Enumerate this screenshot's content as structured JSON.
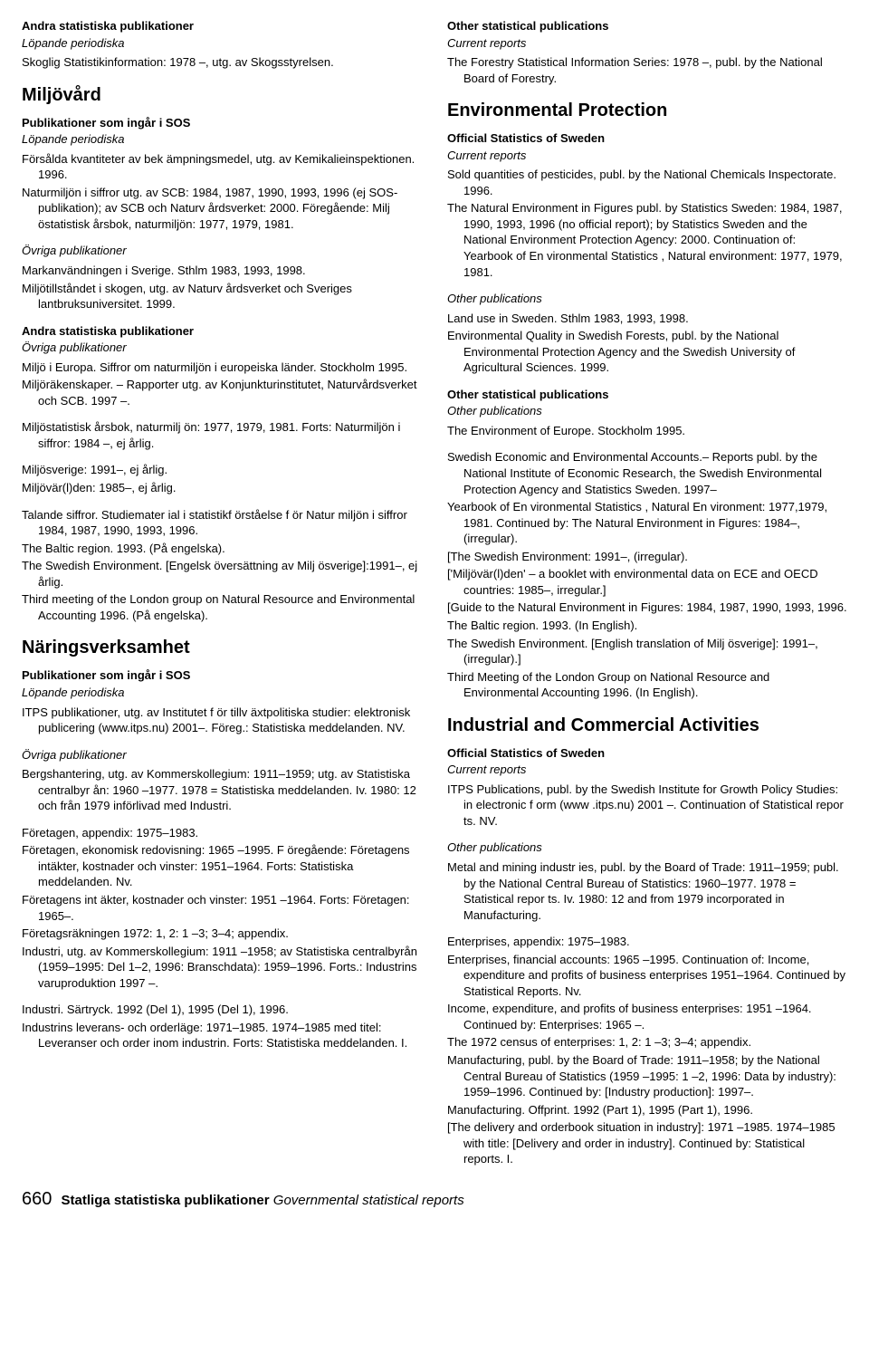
{
  "left": {
    "s1_title": "Andra statistiska publikationer",
    "s1_sub": "Löpande periodiska",
    "s1_p1": "Skoglig Statistikinformation: 1978 –, utg. av Skogsstyrelsen.",
    "sec1": "Miljövård",
    "sec1_h1": "Publikationer som ingår i SOS",
    "sec1_h1_sub": "Löpande periodiska",
    "sec1_p1": "Försålda kvantiteter av bek ämpningsmedel, utg. av Kemikalieinspektionen. 1996.",
    "sec1_p2": "Naturmiljön i siffror utg. av SCB: 1984, 1987, 1990, 1993, 1996 (ej SOS-publikation); av SCB och Naturv årdsverket: 2000. Föregående: Milj östatistisk årsbok, naturmiljön: 1977, 1979, 1981.",
    "sec1_h2": "Övriga publikationer",
    "sec1_p3": "Markanvändningen i Sverige. Sthlm 1983, 1993, 1998.",
    "sec1_p4": "Miljötillståndet i skogen, utg. av Naturv årdsverket och Sveriges lantbruksuniversitet. 1999.",
    "s2_title": "Andra statistiska publikationer",
    "s2_sub": "Övriga publikationer",
    "s2_p1": "Miljö i Europa. Siffror om naturmiljön i europeiska länder. Stockholm 1995.",
    "s2_p2": "Miljöräkenskaper. – Rapporter utg. av Konjunkturinstitutet, Naturvårdsverket och SCB. 1997 –.",
    "s2_p3": "Miljöstatistisk årsbok, naturmilj ön: 1977, 1979, 1981. Forts: Naturmiljön i siffror: 1984 –, ej årlig.",
    "s2_p4": "Miljösverige: 1991–, ej årlig.",
    "s2_p5": "Miljövär(l)den: 1985–, ej årlig.",
    "s2_p6": "Talande siffror. Studiemater ial i statistikf örståelse f ör Natur miljön i siffror 1984, 1987, 1990, 1993, 1996.",
    "s2_p7": "The Baltic region. 1993. (På engelska).",
    "s2_p8": "The Swedish Environment. [Engelsk  översättning av Milj ösverige]:1991–, ej årlig.",
    "s2_p9": "Third meeting of the London group on Natural Resource and Environmental Accounting 1996. (På engelska).",
    "sec2": "Näringsverksamhet",
    "sec2_h1": "Publikationer som ingår i SOS",
    "sec2_h1_sub": "Löpande periodiska",
    "sec2_p1": "ITPS publikationer, utg. av Institutet f ör tillv äxtpolitiska studier: elektronisk publicering (www.itps.nu) 2001–. Föreg.: Statistiska meddelanden. NV.",
    "sec2_h2": "Övriga publikationer",
    "sec2_p2": "Bergshantering, utg. av Kommerskollegium: 1911–1959; utg. av Statistiska centralbyr ån: 1960 –1977. 1978 = Statistiska meddelanden. Iv. 1980: 12 och från 1979 införlivad med Industri.",
    "sec2_p3": "Företagen, appendix: 1975–1983.",
    "sec2_p4": "Företagen, ekonomisk redovisning: 1965 –1995. F öregående: Företagens intäkter, kostnader och vinster: 1951–1964. Forts: Statistiska meddelanden. Nv.",
    "sec2_p5": "Företagens int äkter, kostnader och vinster: 1951 –1964. Forts: Företagen: 1965–.",
    "sec2_p6": "Företagsräkningen 1972: 1, 2: 1 –3; 3–4; appendix.",
    "sec2_p7": "Industri, utg. av Kommerskollegium: 1911 –1958; av Statistiska centralbyrån (1959–1995: Del 1–2, 1996: Branschdata): 1959–1996. Forts.: Industrins varuproduktion 1997 –.",
    "sec2_p8": "Industri. Särtryck. 1992 (Del 1), 1995 (Del 1), 1996.",
    "sec2_p9": "Industrins leverans- och orderläge: 1971–1985. 1974–1985 med titel: Leveranser och order inom industrin. Forts: Statistiska meddelanden. I."
  },
  "right": {
    "s1_title": "Other statistical publications",
    "s1_sub": "Current reports",
    "s1_p1": "The Forestry Statistical Information Series: 1978 –, publ. by the National Board of Forestry.",
    "sec1": "Environmental Protection",
    "sec1_h1": "Official Statistics of Sweden",
    "sec1_h1_sub": "Current reports",
    "sec1_p1": "Sold quantities of pesticides, publ. by the National Chemicals Inspectorate. 1996.",
    "sec1_p2": "The Natural Environment in Figures publ. by Statistics Sweden: 1984, 1987, 1990, 1993, 1996 (no official report); by Statistics Sweden and the National Environment Protection Agency: 2000. Continuation of: Yearbook of En vironmental Statistics , Natural environment: 1977, 1979, 1981.",
    "sec1_h2": "Other publications",
    "sec1_p3": "Land use in Sweden. Sthlm 1983, 1993, 1998.",
    "sec1_p4": "Environmental Quality in Swedish Forests, publ. by the National Environmental Protection Agency and the Swedish University of Agricultural Sciences. 1999.",
    "s2_title": "Other statistical publications",
    "s2_sub": "Other publications",
    "s2_p1": "The Environment of Europe. Stockholm 1995.",
    "s2_p2": "Swedish Economic and Environmental Accounts.– Reports publ. by the National Institute of Economic Research, the Swedish Environmental Protection Agency and Statistics Sweden. 1997–",
    "s2_p3": "Yearbook of En vironmental Statistics , Natural En vironment: 1977,1979, 1981. Continued by: The Natural Environment in Figures: 1984–, (irregular).",
    "s2_p4": "[The Swedish Environment: 1991–, (irregular).",
    "s2_p5": "['Miljövär(l)den' – a booklet with environmental data on ECE and OECD countries: 1985–, irregular.]",
    "s2_p6": "[Guide to the Natural Environment in Figures: 1984, 1987, 1990, 1993, 1996.",
    "s2_p7": "The Baltic region. 1993. (In English).",
    "s2_p8": "The Swedish Environment. [English translation of Milj ösverige]: 1991–, (irregular).]",
    "s2_p9": "Third Meeting of the London Group on National Resource and Environmental Accounting 1996. (In English).",
    "sec2": "Industrial and Commercial Activities",
    "sec2_h1": "Official Statistics of Sweden",
    "sec2_h1_sub": "Current reports",
    "sec2_p1": "ITPS Publications, publ. by the Swedish Institute for Growth Policy Studies: in electronic f orm (www .itps.nu) 2001 –. Continuation of Statistical repor ts. NV.",
    "sec2_h2": "Other publications",
    "sec2_p2": "Metal and mining industr ies, publ. by the Board of Trade: 1911–1959; publ. by the National Central Bureau of Statistics: 1960–1977. 1978 = Statistical repor ts. Iv. 1980: 12 and from 1979 incorporated in Manufacturing.",
    "sec2_p3": "Enterprises, appendix: 1975–1983.",
    "sec2_p4": "Enterprises, financial accounts: 1965 –1995. Continuation of: Income, expenditure and profits of business enterprises 1951–1964. Continued by Statistical Reports. Nv.",
    "sec2_p5": "Income, expenditure, and profits of business enterprises: 1951 –1964. Continued by: Enterprises: 1965 –.",
    "sec2_p6": "The 1972 census of enterprises: 1, 2: 1 –3; 3–4; appendix.",
    "sec2_p7": "Manufacturing, publ. by the Board of  Trade: 1911–1958; by the National Central Bureau of Statistics (1959 –1995: 1 –2, 1996: Data by industry): 1959–1996. Continued by: [Industry production]: 1997–.",
    "sec2_p8": "Manufacturing. Offprint. 1992 (Part 1), 1995 (Part 1), 1996.",
    "sec2_p9": "[The delivery and orderbook situation in industry]: 1971  –1985. 1974–1985 with title: [Delivery and order in industry]. Continued by: Statistical reports. I."
  },
  "footer": {
    "pagenum": "660",
    "bold": "Statliga statistiska publikationer",
    "italic": "Governmental statistical reports"
  }
}
